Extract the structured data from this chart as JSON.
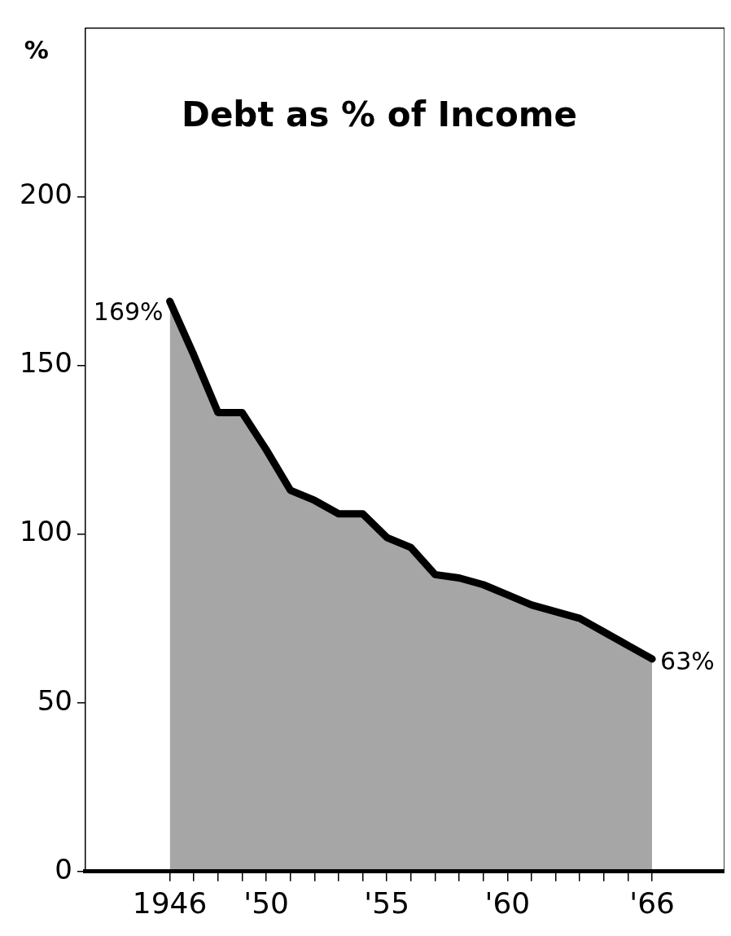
{
  "chart_data": {
    "type": "area",
    "title": "Debt as % of Income",
    "ylabel": "%",
    "x": [
      1946,
      1947,
      1948,
      1949,
      1950,
      1951,
      1952,
      1953,
      1954,
      1955,
      1956,
      1957,
      1958,
      1959,
      1960,
      1961,
      1962,
      1963,
      1964,
      1965,
      1966
    ],
    "series": [
      {
        "color": "#000000",
        "values": [
          169,
          153,
          136,
          136,
          125,
          113,
          110,
          106,
          106,
          99,
          96,
          88,
          87,
          85,
          82,
          79,
          77,
          75,
          71,
          67,
          63
        ]
      }
    ],
    "xlim": [
      1942.5,
      1969
    ],
    "xticks": [
      {
        "value": 1946,
        "label": "1946"
      },
      {
        "value": 1947,
        "label": null
      },
      {
        "value": 1948,
        "label": null
      },
      {
        "value": 1949,
        "label": null
      },
      {
        "value": 1950,
        "label": "'50"
      },
      {
        "value": 1951,
        "label": null
      },
      {
        "value": 1952,
        "label": null
      },
      {
        "value": 1953,
        "label": null
      },
      {
        "value": 1954,
        "label": null
      },
      {
        "value": 1955,
        "label": "'55"
      },
      {
        "value": 1956,
        "label": null
      },
      {
        "value": 1957,
        "label": null
      },
      {
        "value": 1958,
        "label": null
      },
      {
        "value": 1959,
        "label": null
      },
      {
        "value": 1960,
        "label": "'60"
      },
      {
        "value": 1961,
        "label": null
      },
      {
        "value": 1962,
        "label": null
      },
      {
        "value": 1963,
        "label": null
      },
      {
        "value": 1964,
        "label": null
      },
      {
        "value": 1965,
        "label": null
      },
      {
        "value": 1966,
        "label": "'66"
      }
    ],
    "ylim": [
      0,
      250
    ],
    "yticks": [
      0,
      50,
      100,
      150,
      200
    ],
    "annotations": [
      {
        "text": "169%",
        "x": 1946,
        "y": 169
      },
      {
        "text": "63%",
        "x": 1966,
        "y": 63
      }
    ],
    "grid": false,
    "legend": false,
    "marker": "none",
    "line_style": "solid"
  }
}
